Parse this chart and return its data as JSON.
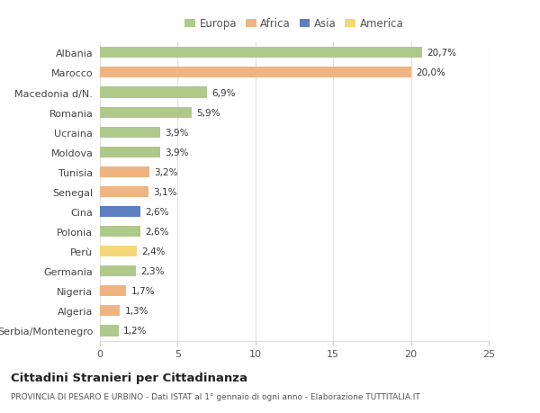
{
  "countries": [
    "Albania",
    "Marocco",
    "Macedonia d/N.",
    "Romania",
    "Ucraina",
    "Moldova",
    "Tunisia",
    "Senegal",
    "Cina",
    "Polonia",
    "Perù",
    "Germania",
    "Nigeria",
    "Algeria",
    "Serbia/Montenegro"
  ],
  "values": [
    20.7,
    20.0,
    6.9,
    5.9,
    3.9,
    3.9,
    3.2,
    3.1,
    2.6,
    2.6,
    2.4,
    2.3,
    1.7,
    1.3,
    1.2
  ],
  "labels": [
    "20,7%",
    "20,0%",
    "6,9%",
    "5,9%",
    "3,9%",
    "3,9%",
    "3,2%",
    "3,1%",
    "2,6%",
    "2,6%",
    "2,4%",
    "2,3%",
    "1,7%",
    "1,3%",
    "1,2%"
  ],
  "regions": [
    "Europa",
    "Africa",
    "Europa",
    "Europa",
    "Europa",
    "Europa",
    "Africa",
    "Africa",
    "Asia",
    "Europa",
    "America",
    "Europa",
    "Africa",
    "Africa",
    "Europa"
  ],
  "region_colors": {
    "Europa": "#aec98a",
    "Africa": "#f0b482",
    "Asia": "#5b7fc1",
    "America": "#f5d77a"
  },
  "legend_order": [
    "Europa",
    "Africa",
    "Asia",
    "America"
  ],
  "title": "Cittadini Stranieri per Cittadinanza",
  "subtitle": "PROVINCIA DI PESARO E URBINO - Dati ISTAT al 1° gennaio di ogni anno - Elaborazione TUTTITALIA.IT",
  "xlim": [
    0,
    25
  ],
  "xticks": [
    0,
    5,
    10,
    15,
    20,
    25
  ],
  "background_color": "#ffffff",
  "grid_color": "#e0e0e0",
  "bar_height": 0.55
}
